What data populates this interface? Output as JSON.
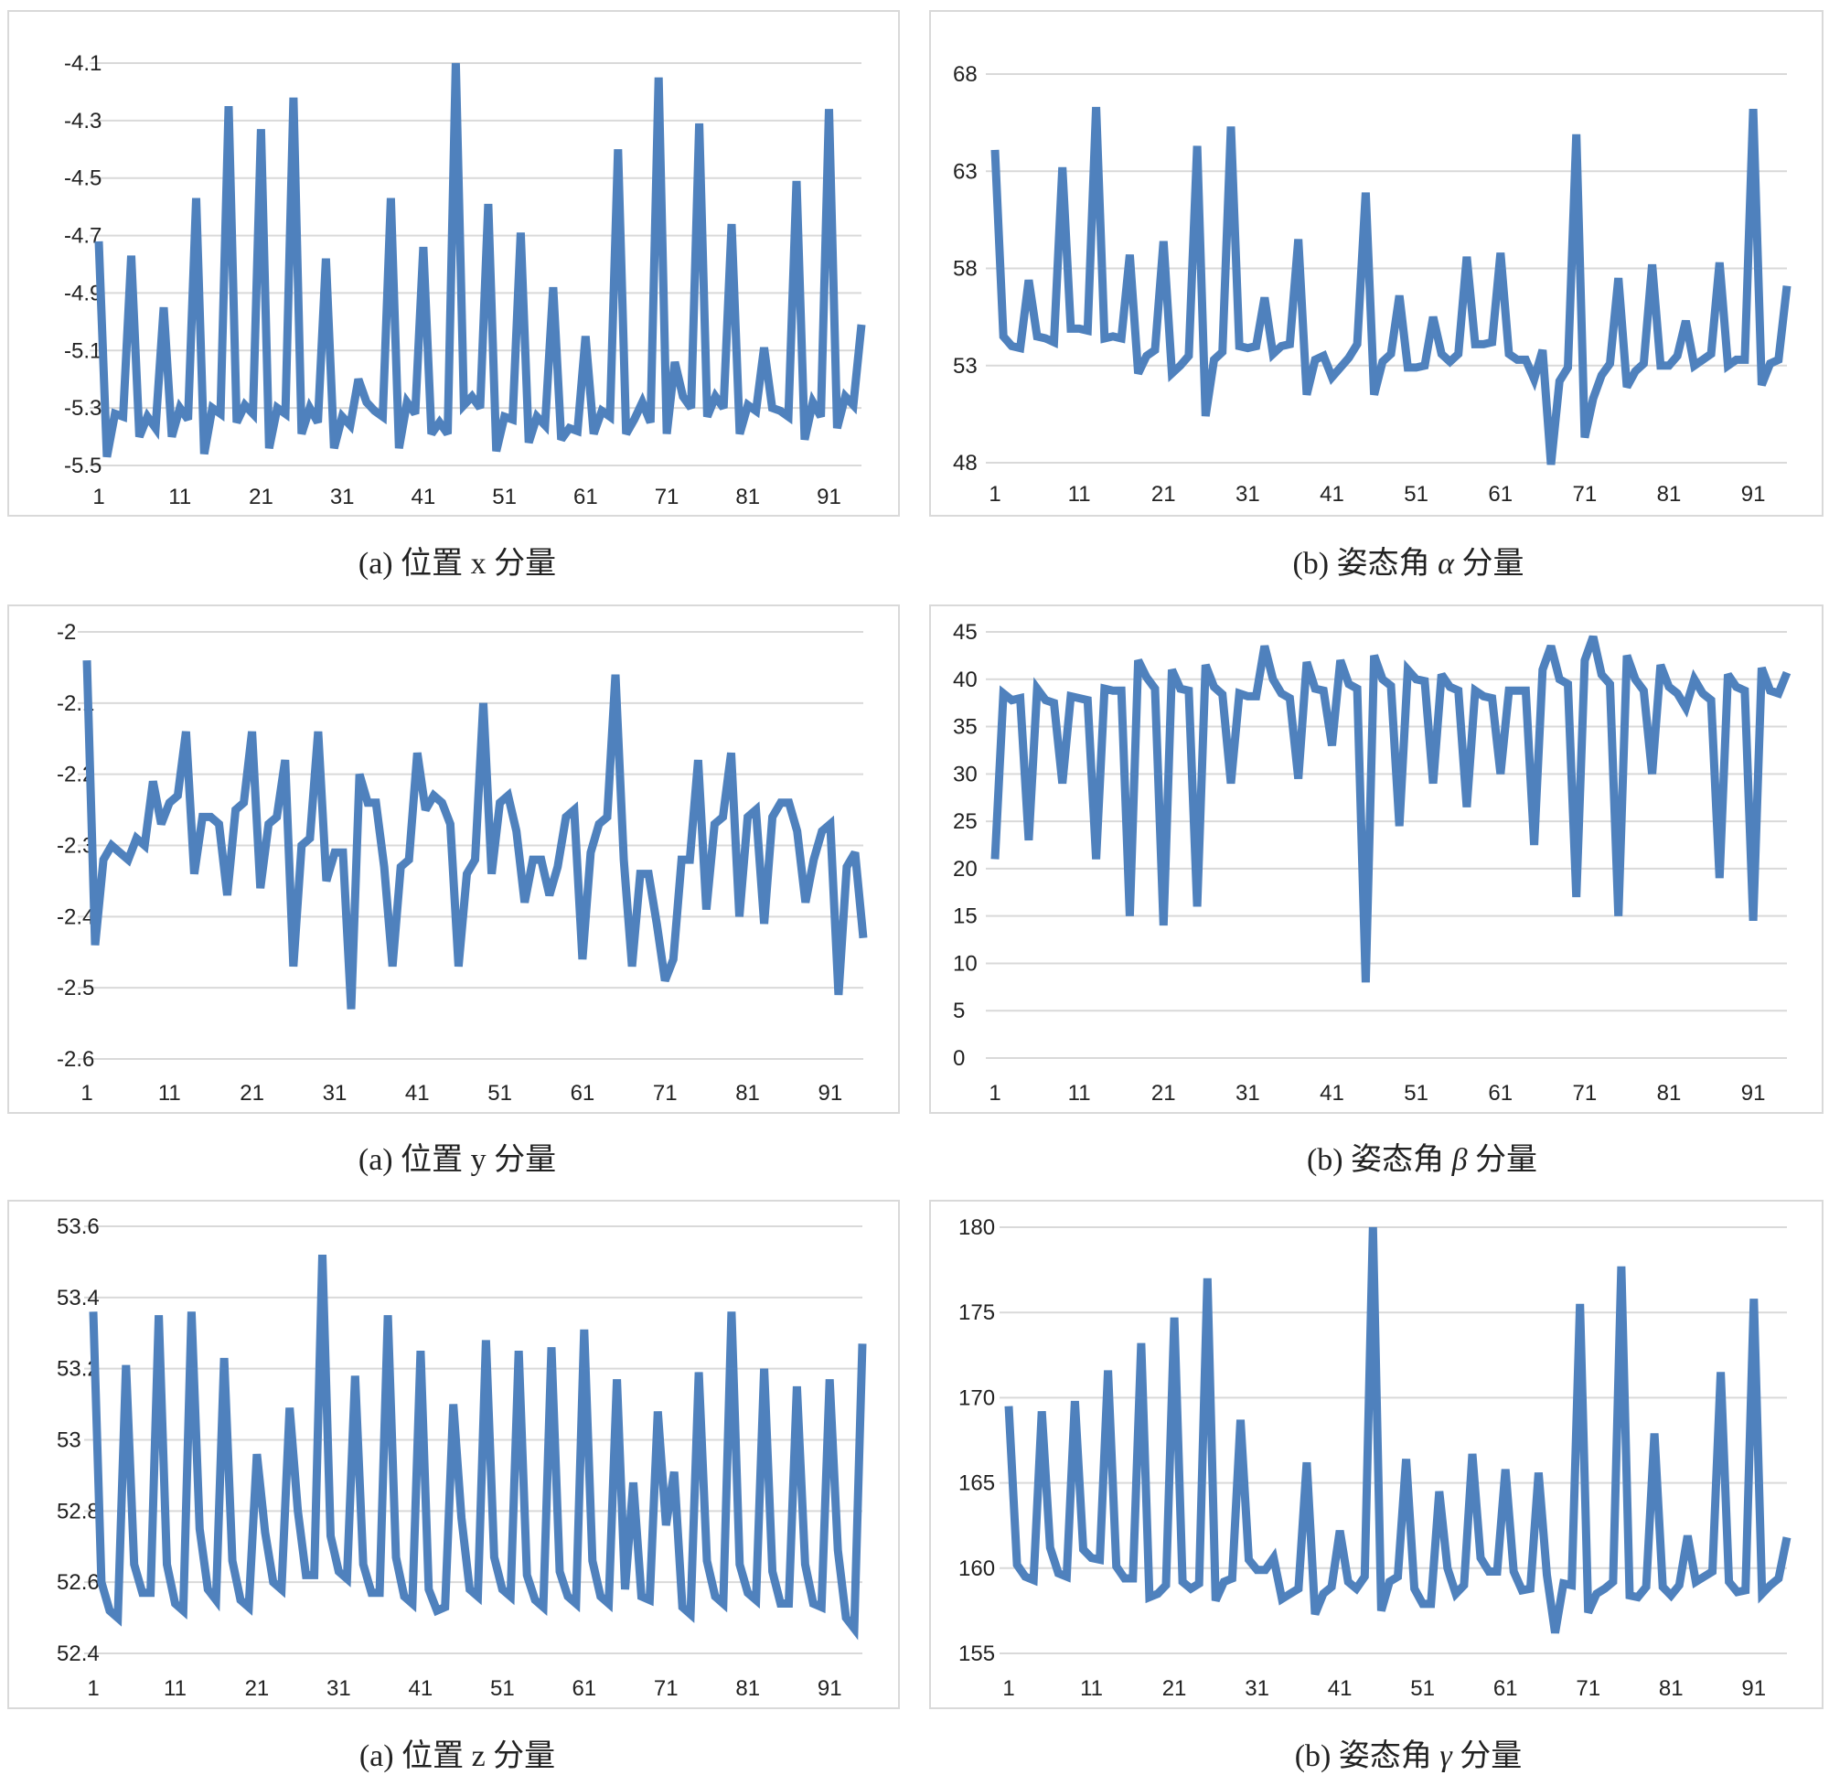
{
  "chart_data": [
    {
      "type": "line",
      "caption": "(a)  位置 x 分量",
      "title": "",
      "xlabel": "",
      "ylabel": "",
      "ylim": [
        -5.5,
        -4.1
      ],
      "yticks": [
        "-4.1",
        "-4.3",
        "-4.5",
        "-4.7",
        "-4.9",
        "-5.1",
        "-5.3",
        "-5.5"
      ],
      "ytick_values": [
        -4.1,
        -4.3,
        -4.5,
        -4.7,
        -4.9,
        -5.1,
        -5.3,
        -5.5
      ],
      "xticks": [
        "1",
        "11",
        "21",
        "31",
        "41",
        "51",
        "61",
        "71",
        "81",
        "91"
      ],
      "series_color": "#4f81bd",
      "series": [
        {
          "name": "x",
          "values": [
            -4.72,
            -5.47,
            -5.32,
            -5.33,
            -4.77,
            -5.4,
            -5.33,
            -5.37,
            -4.95,
            -5.4,
            -5.3,
            -5.34,
            -4.57,
            -5.46,
            -5.3,
            -5.32,
            -4.25,
            -5.35,
            -5.29,
            -5.32,
            -4.33,
            -5.44,
            -5.3,
            -5.32,
            -4.22,
            -5.39,
            -5.3,
            -5.35,
            -4.78,
            -5.44,
            -5.33,
            -5.36,
            -5.2,
            -5.28,
            -5.31,
            -5.33,
            -4.57,
            -5.44,
            -5.28,
            -5.32,
            -4.74,
            -5.39,
            -5.35,
            -5.39,
            -4.1,
            -5.29,
            -5.26,
            -5.3,
            -4.59,
            -5.45,
            -5.33,
            -5.34,
            -4.69,
            -5.42,
            -5.33,
            -5.36,
            -4.88,
            -5.41,
            -5.37,
            -5.38,
            -5.05,
            -5.39,
            -5.31,
            -5.33,
            -4.4,
            -5.39,
            -5.34,
            -5.28,
            -5.35,
            -4.15,
            -5.39,
            -5.14,
            -5.26,
            -5.3,
            -4.31,
            -5.33,
            -5.26,
            -5.3,
            -4.66,
            -5.39,
            -5.29,
            -5.31,
            -5.09,
            -5.3,
            -5.31,
            -5.33,
            -4.51,
            -5.41,
            -5.28,
            -5.33,
            -4.26,
            -5.37,
            -5.26,
            -5.29,
            -5.01
          ]
        }
      ]
    },
    {
      "type": "line",
      "caption_prefix": "(b)  姿态角 ",
      "caption_greek": "α",
      "caption_suffix": " 分量",
      "title": "",
      "xlabel": "",
      "ylabel": "",
      "ylim": [
        48,
        68
      ],
      "yticks": [
        "68",
        "63",
        "58",
        "53",
        "48"
      ],
      "ytick_values": [
        68,
        63,
        58,
        53,
        48
      ],
      "xticks": [
        "1",
        "11",
        "21",
        "31",
        "41",
        "51",
        "61",
        "71",
        "81",
        "91"
      ],
      "series_color": "#4f81bd",
      "series": [
        {
          "name": "alpha",
          "values": [
            64.1,
            54.5,
            54.0,
            53.9,
            57.4,
            54.5,
            54.4,
            54.2,
            63.2,
            54.9,
            54.9,
            54.8,
            66.3,
            54.4,
            54.5,
            54.4,
            58.7,
            52.6,
            53.5,
            53.8,
            59.4,
            52.6,
            53.0,
            53.5,
            64.3,
            50.4,
            53.3,
            53.7,
            65.3,
            54.0,
            53.9,
            54.0,
            56.5,
            53.6,
            54.0,
            54.1,
            59.5,
            51.5,
            53.3,
            53.5,
            52.4,
            52.9,
            53.4,
            54.1,
            61.9,
            51.5,
            53.2,
            53.6,
            56.6,
            52.9,
            52.9,
            53.0,
            55.5,
            53.6,
            53.2,
            53.6,
            58.6,
            54.1,
            54.1,
            54.2,
            58.8,
            53.6,
            53.3,
            53.3,
            52.3,
            53.8,
            47.9,
            52.2,
            52.9,
            64.9,
            49.3,
            51.3,
            52.5,
            53.1,
            57.5,
            51.9,
            52.7,
            53.1,
            58.2,
            53.0,
            53.0,
            53.5,
            55.3,
            53.0,
            53.3,
            53.6,
            58.3,
            53.0,
            53.3,
            53.3,
            66.2,
            52.0,
            53.1,
            53.3,
            57.1
          ]
        }
      ]
    },
    {
      "type": "line",
      "caption": "(a)  位置 y 分量",
      "title": "",
      "xlabel": "",
      "ylabel": "",
      "ylim": [
        -2.6,
        -2.0
      ],
      "yticks": [
        "-2",
        "-2.1",
        "-2.2",
        "-2.3",
        "-2.4",
        "-2.5",
        "-2.6"
      ],
      "ytick_values": [
        -2.0,
        -2.1,
        -2.2,
        -2.3,
        -2.4,
        -2.5,
        -2.6
      ],
      "xticks": [
        "1",
        "11",
        "21",
        "31",
        "41",
        "51",
        "61",
        "71",
        "81",
        "91"
      ],
      "series_color": "#4f81bd",
      "series": [
        {
          "name": "y",
          "values": [
            -2.04,
            -2.44,
            -2.32,
            -2.3,
            -2.31,
            -2.32,
            -2.29,
            -2.3,
            -2.21,
            -2.27,
            -2.24,
            -2.23,
            -2.14,
            -2.34,
            -2.26,
            -2.26,
            -2.27,
            -2.37,
            -2.25,
            -2.24,
            -2.14,
            -2.36,
            -2.27,
            -2.26,
            -2.18,
            -2.47,
            -2.3,
            -2.29,
            -2.14,
            -2.35,
            -2.31,
            -2.31,
            -2.53,
            -2.2,
            -2.24,
            -2.24,
            -2.33,
            -2.47,
            -2.33,
            -2.32,
            -2.17,
            -2.25,
            -2.23,
            -2.24,
            -2.27,
            -2.47,
            -2.34,
            -2.32,
            -2.1,
            -2.34,
            -2.24,
            -2.23,
            -2.28,
            -2.38,
            -2.32,
            -2.32,
            -2.37,
            -2.33,
            -2.26,
            -2.25,
            -2.46,
            -2.31,
            -2.27,
            -2.26,
            -2.06,
            -2.32,
            -2.47,
            -2.34,
            -2.34,
            -2.41,
            -2.49,
            -2.46,
            -2.32,
            -2.32,
            -2.18,
            -2.39,
            -2.27,
            -2.26,
            -2.17,
            -2.4,
            -2.26,
            -2.25,
            -2.41,
            -2.26,
            -2.24,
            -2.24,
            -2.28,
            -2.38,
            -2.32,
            -2.28,
            -2.27,
            -2.51,
            -2.33,
            -2.31,
            -2.43
          ]
        }
      ]
    },
    {
      "type": "line",
      "caption_prefix": "(b)  姿态角 ",
      "caption_greek": "β",
      "caption_suffix": " 分量",
      "title": "",
      "xlabel": "",
      "ylabel": "",
      "ylim": [
        0,
        45
      ],
      "yticks": [
        "45",
        "40",
        "35",
        "30",
        "25",
        "20",
        "15",
        "10",
        "5",
        "0"
      ],
      "ytick_values": [
        45,
        40,
        35,
        30,
        25,
        20,
        15,
        10,
        5,
        0
      ],
      "xticks": [
        "1",
        "11",
        "21",
        "31",
        "41",
        "51",
        "61",
        "71",
        "81",
        "91"
      ],
      "series_color": "#4f81bd",
      "series": [
        {
          "name": "beta",
          "values": [
            21,
            38.5,
            37.8,
            38,
            23,
            39,
            37.8,
            37.5,
            29,
            38.2,
            38,
            37.8,
            21,
            39,
            38.8,
            38.8,
            15,
            42,
            40.2,
            39,
            14,
            41,
            39,
            38.8,
            16,
            41.5,
            39.2,
            38.4,
            29,
            38.5,
            38.2,
            38.2,
            43.5,
            40,
            38.5,
            38,
            29.5,
            41.8,
            39,
            38.8,
            33,
            42,
            39.5,
            39,
            8,
            42.5,
            40,
            39.3,
            24.5,
            41,
            40,
            39.8,
            29,
            40.5,
            39.2,
            38.8,
            26.5,
            38.8,
            38.2,
            38,
            30,
            38.8,
            38.8,
            38.8,
            22.5,
            41,
            43.5,
            40,
            39.5,
            17,
            42,
            44.5,
            40.5,
            39.5,
            15,
            42.5,
            40,
            38.8,
            30,
            41.5,
            39.2,
            38.5,
            37,
            40,
            38.5,
            37.8,
            19,
            40.5,
            39.2,
            38.8,
            14.5,
            41.2,
            38.8,
            38.5,
            40.7
          ]
        }
      ]
    },
    {
      "type": "line",
      "caption": "(a)  位置 z 分量",
      "title": "",
      "xlabel": "",
      "ylabel": "",
      "ylim": [
        52.4,
        53.6
      ],
      "yticks": [
        "53.6",
        "53.4",
        "53.2",
        "53",
        "52.8",
        "52.6",
        "52.4"
      ],
      "ytick_values": [
        53.6,
        53.4,
        53.2,
        53.0,
        52.8,
        52.6,
        52.4
      ],
      "xticks": [
        "1",
        "11",
        "21",
        "31",
        "41",
        "51",
        "61",
        "71",
        "81",
        "91"
      ],
      "series_color": "#4f81bd",
      "series": [
        {
          "name": "z",
          "values": [
            53.36,
            52.6,
            52.52,
            52.5,
            53.21,
            52.65,
            52.57,
            52.57,
            53.35,
            52.65,
            52.54,
            52.52,
            53.36,
            52.75,
            52.58,
            52.55,
            53.23,
            52.66,
            52.55,
            52.53,
            52.96,
            52.74,
            52.6,
            52.58,
            53.09,
            52.8,
            52.62,
            52.62,
            53.52,
            52.73,
            52.63,
            52.61,
            53.18,
            52.65,
            52.57,
            52.57,
            53.35,
            52.67,
            52.56,
            52.54,
            53.25,
            52.58,
            52.52,
            52.53,
            53.1,
            52.78,
            52.58,
            52.56,
            53.28,
            52.67,
            52.58,
            52.56,
            53.25,
            52.62,
            52.55,
            52.53,
            53.26,
            52.63,
            52.56,
            52.54,
            53.31,
            52.66,
            52.56,
            52.54,
            53.17,
            52.58,
            52.88,
            52.56,
            52.55,
            53.08,
            52.76,
            52.91,
            52.53,
            52.51,
            53.19,
            52.66,
            52.56,
            52.54,
            53.36,
            52.65,
            52.57,
            52.55,
            53.2,
            52.63,
            52.54,
            52.54,
            53.15,
            52.65,
            52.54,
            52.53,
            53.17,
            52.69,
            52.5,
            52.47,
            53.27
          ]
        }
      ]
    },
    {
      "type": "line",
      "caption_prefix": "(b)  姿态角 ",
      "caption_greek": "γ",
      "caption_suffix": " 分量",
      "title": "",
      "xlabel": "",
      "ylabel": "",
      "ylim": [
        155,
        180
      ],
      "yticks": [
        "180",
        "175",
        "170",
        "165",
        "160",
        "155"
      ],
      "ytick_values": [
        180,
        175,
        170,
        165,
        160,
        155
      ],
      "xticks": [
        "1",
        "11",
        "21",
        "31",
        "41",
        "51",
        "61",
        "71",
        "81",
        "91"
      ],
      "series_color": "#4f81bd",
      "series": [
        {
          "name": "gamma",
          "values": [
            169.5,
            160.2,
            159.5,
            159.3,
            169.2,
            161.2,
            159.7,
            159.5,
            169.8,
            161.1,
            160.6,
            160.5,
            171.6,
            160.1,
            159.4,
            159.4,
            173.2,
            158.3,
            158.5,
            159.0,
            174.7,
            159.2,
            158.8,
            159.1,
            177.0,
            158.1,
            159.2,
            159.4,
            168.7,
            160.5,
            159.9,
            159.9,
            160.6,
            158.2,
            158.5,
            158.8,
            166.2,
            157.3,
            158.5,
            158.9,
            162.2,
            159.2,
            158.8,
            159.5,
            180.0,
            157.5,
            159.2,
            159.5,
            166.4,
            158.8,
            157.9,
            157.9,
            164.5,
            160.0,
            158.5,
            159.0,
            166.7,
            160.6,
            159.8,
            159.8,
            165.8,
            159.8,
            158.7,
            158.8,
            165.6,
            159.6,
            156.2,
            159.1,
            159.0,
            175.5,
            157.4,
            158.5,
            158.8,
            159.2,
            177.7,
            158.4,
            158.3,
            158.9,
            167.9,
            158.9,
            158.4,
            159.0,
            161.9,
            159.2,
            159.5,
            159.8,
            171.5,
            159.2,
            158.6,
            158.7,
            175.8,
            158.5,
            159.0,
            159.4,
            161.8
          ]
        }
      ]
    }
  ]
}
